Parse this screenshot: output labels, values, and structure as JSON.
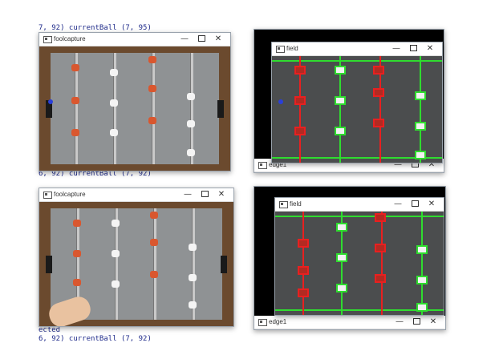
{
  "console": {
    "top_line": "7, 92) currentBall  (7, 95)",
    "mid_line": "6, 92) currentBall  (7, 92)",
    "bottom_line_1": "ected",
    "bottom_line_2": "6, 92) currentBall  (7, 92)"
  },
  "windows": {
    "capture_top": {
      "title": "foolcapture",
      "min": "—",
      "close": "✕"
    },
    "capture_bottom": {
      "title": "foolcapture",
      "min": "—",
      "close": "✕"
    },
    "field_top": {
      "title": "field",
      "min": "—",
      "close": "✕"
    },
    "field_bottom": {
      "title": "field",
      "min": "—",
      "close": "✕"
    },
    "edge_top": {
      "title": "edge1",
      "min": "—",
      "close": "✕"
    },
    "edge_bottom": {
      "title": "edge1",
      "min": "—",
      "close": "✕"
    }
  },
  "colors": {
    "rod_green": "#2fdc2f",
    "rod_red": "#e82020",
    "wood": "#6b4a2e",
    "felt": "#8f9294",
    "ball": "#2a3fd8"
  },
  "icons": [
    "app-icon",
    "minimize-icon",
    "maximize-icon",
    "close-icon"
  ]
}
